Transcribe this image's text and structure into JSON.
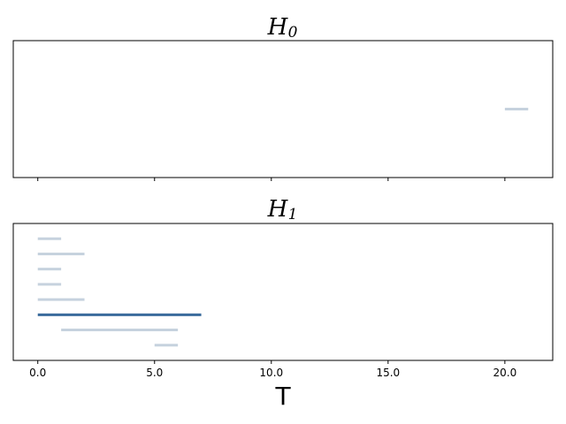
{
  "chart_data": [
    {
      "type": "barcode",
      "title": "H",
      "title_subscript": "0",
      "xlim": [
        -1.05,
        22.05
      ],
      "intervals": [
        {
          "birth": 20.0,
          "death": 21.0,
          "color": "#c6d2de"
        }
      ],
      "show_x_tick_labels": false
    },
    {
      "type": "barcode",
      "title": "H",
      "title_subscript": "1",
      "xlabel": "T",
      "xlim": [
        -1.05,
        22.05
      ],
      "xticks": [
        0,
        5,
        10,
        15,
        20
      ],
      "xtick_labels": [
        "0.0",
        "5.0",
        "10.0",
        "15.0",
        "20.0"
      ],
      "intervals": [
        {
          "birth": 5.0,
          "death": 6.0,
          "color": "#c6d2de"
        },
        {
          "birth": 1.0,
          "death": 6.0,
          "color": "#c6d2de"
        },
        {
          "birth": 0.0,
          "death": 7.0,
          "color": "#3a6b9c"
        },
        {
          "birth": 0.0,
          "death": 2.0,
          "color": "#c6d2de"
        },
        {
          "birth": 0.0,
          "death": 1.0,
          "color": "#c6d2de"
        },
        {
          "birth": 0.0,
          "death": 1.0,
          "color": "#c6d2de"
        },
        {
          "birth": 0.0,
          "death": 2.0,
          "color": "#c6d2de"
        },
        {
          "birth": 0.0,
          "death": 1.0,
          "color": "#c6d2de"
        }
      ],
      "show_x_tick_labels": true
    }
  ]
}
